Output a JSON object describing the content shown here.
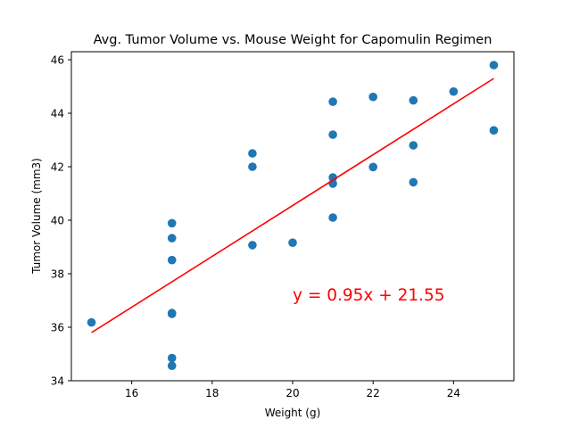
{
  "chart_data": {
    "type": "scatter",
    "title": "Avg. Tumor Volume vs. Mouse Weight for Capomulin Regimen",
    "xlabel": "Weight (g)",
    "ylabel": "Tumor Volume (mm3)",
    "xlim": [
      14.5,
      25.5
    ],
    "ylim": [
      34,
      46.3
    ],
    "xticks": [
      16,
      18,
      20,
      22,
      24
    ],
    "yticks": [
      34,
      36,
      38,
      40,
      42,
      44,
      46
    ],
    "grid": false,
    "legend": "none",
    "colors": {
      "points": "#1f77b4",
      "regression": "#ff0000"
    },
    "points": [
      {
        "x": 15,
        "y": 36.18
      },
      {
        "x": 17,
        "y": 34.56
      },
      {
        "x": 17,
        "y": 34.85
      },
      {
        "x": 17,
        "y": 36.5
      },
      {
        "x": 17,
        "y": 36.53
      },
      {
        "x": 17,
        "y": 38.51
      },
      {
        "x": 17,
        "y": 39.33
      },
      {
        "x": 17,
        "y": 39.89
      },
      {
        "x": 19,
        "y": 39.07
      },
      {
        "x": 19,
        "y": 42.0
      },
      {
        "x": 19,
        "y": 42.5
      },
      {
        "x": 20,
        "y": 39.16
      },
      {
        "x": 21,
        "y": 40.1
      },
      {
        "x": 21,
        "y": 41.37
      },
      {
        "x": 21,
        "y": 41.6
      },
      {
        "x": 21,
        "y": 43.2
      },
      {
        "x": 21,
        "y": 44.43
      },
      {
        "x": 22,
        "y": 41.99
      },
      {
        "x": 22,
        "y": 44.61
      },
      {
        "x": 23,
        "y": 41.42
      },
      {
        "x": 23,
        "y": 42.8
      },
      {
        "x": 23,
        "y": 44.48
      },
      {
        "x": 24,
        "y": 44.81
      },
      {
        "x": 25,
        "y": 43.36
      },
      {
        "x": 25,
        "y": 45.8
      }
    ],
    "regression": {
      "slope": 0.95,
      "intercept": 21.55,
      "x_range": [
        15,
        25
      ],
      "label": "y = 0.95x + 21.55",
      "label_position": {
        "x": 20,
        "y": 37
      }
    }
  }
}
